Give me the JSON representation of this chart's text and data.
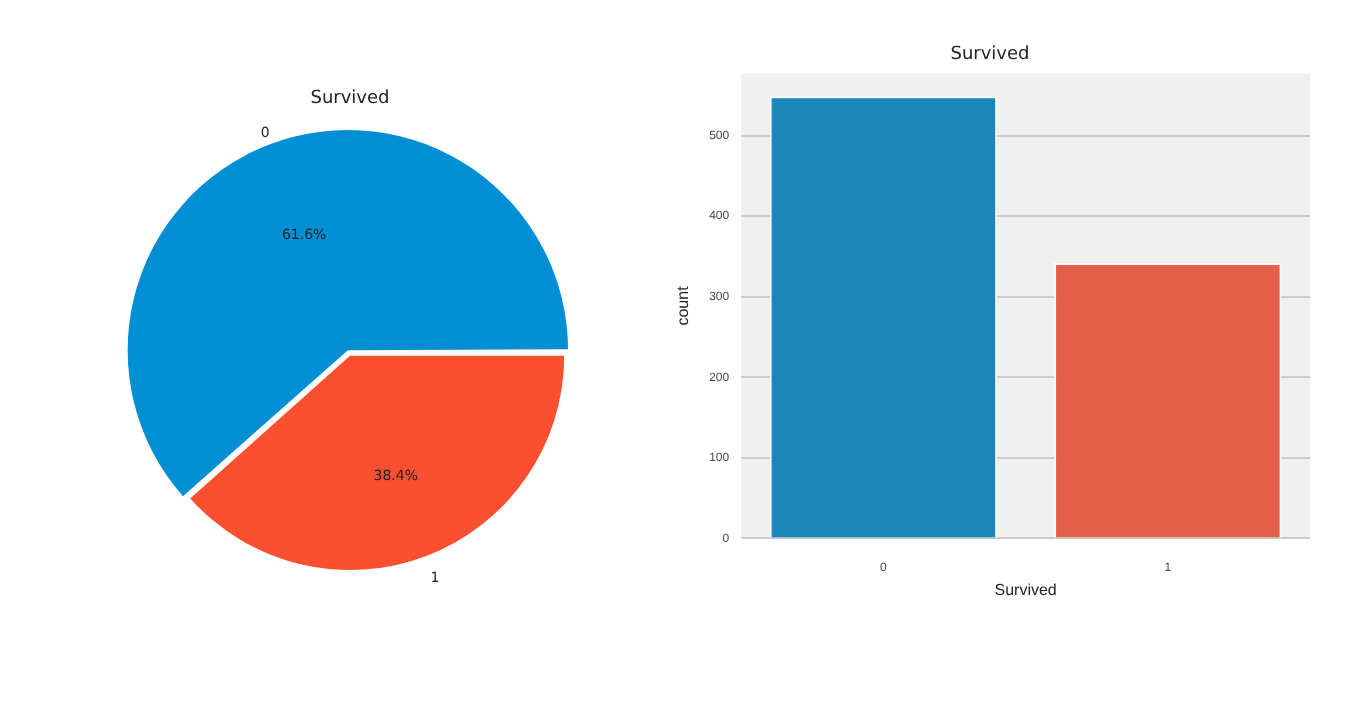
{
  "chart_data": [
    {
      "type": "pie",
      "title": "Survived",
      "categories": [
        "0",
        "1"
      ],
      "values": [
        61.6,
        38.4
      ],
      "value_labels": [
        "61.6%",
        "38.4%"
      ],
      "colors": [
        "#008fd5",
        "#fc4f30"
      ],
      "legend": false
    },
    {
      "type": "bar",
      "title": "Survived",
      "xlabel": "Survived",
      "ylabel": "count",
      "categories": [
        "0",
        "1"
      ],
      "values": [
        549,
        342
      ],
      "colors": [
        "#1a87bb",
        "#e5604a"
      ],
      "ylim": [
        0,
        577
      ],
      "yticks": [
        0,
        100,
        200,
        300,
        400,
        500
      ],
      "grid": "y",
      "legend": false
    }
  ]
}
